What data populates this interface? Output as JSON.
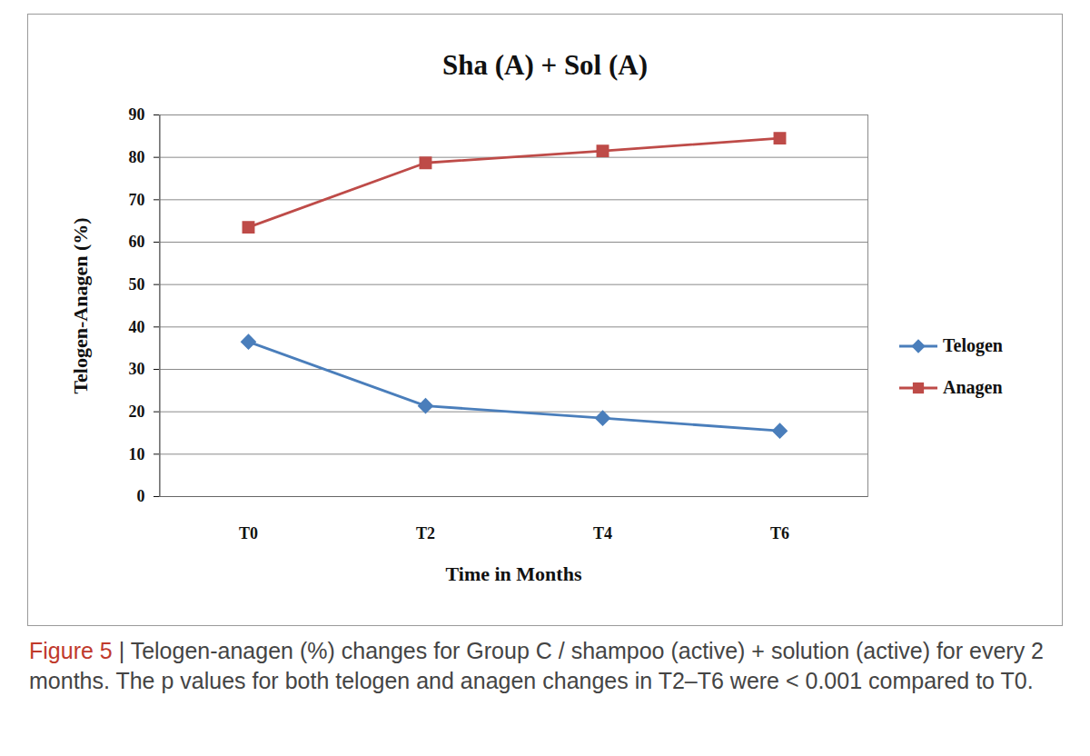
{
  "chart_data": {
    "type": "line",
    "title": "Sha (A) + Sol (A)",
    "caption_label": "Figure 5",
    "caption": "| Telogen-anagen (%) changes for Group C / shampoo (active) + solution (active) for every 2 months. The p values for both telogen and anagen changes in T2–T6 were < 0.001 compared to T0.",
    "x_label": "Time in Months",
    "y_label": "Telogen-Anagen (%)",
    "categories": [
      "T0",
      "T2",
      "T4",
      "T6"
    ],
    "series": [
      {
        "name": "Telogen",
        "color": "#4a7ebb",
        "marker": "diamond",
        "values": [
          36.5,
          21.4,
          18.5,
          15.5
        ]
      },
      {
        "name": "Anagen",
        "color": "#be4b48",
        "marker": "square",
        "values": [
          63.5,
          78.7,
          81.5,
          84.5
        ]
      }
    ],
    "ylim": [
      0,
      90
    ],
    "yticks": [
      0,
      10,
      20,
      30,
      40,
      50,
      60,
      70,
      80,
      90
    ],
    "grid": true,
    "legend": "right"
  }
}
